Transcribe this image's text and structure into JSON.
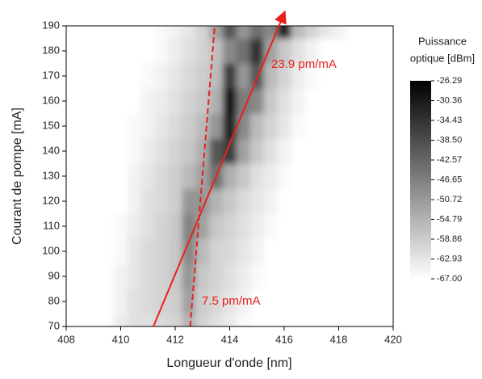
{
  "chart_data": {
    "type": "heatmap",
    "xlabel": "Longueur d'onde [nm]",
    "ylabel": "Courant de pompe [mA]",
    "xlim": [
      408,
      420
    ],
    "ylim": [
      70,
      190
    ],
    "xticks": [
      408,
      410,
      412,
      414,
      416,
      418,
      420
    ],
    "yticks": [
      70,
      80,
      90,
      100,
      110,
      120,
      130,
      140,
      150,
      160,
      170,
      180,
      190
    ],
    "x": [
      409.5,
      410,
      410.5,
      411,
      411.5,
      412,
      412.5,
      413,
      413.5,
      414,
      414.5,
      415,
      415.5,
      416,
      416.5,
      417,
      417.5,
      418,
      418.5
    ],
    "y": [
      70,
      80,
      90,
      100,
      110,
      120,
      130,
      140,
      150,
      160,
      170,
      180,
      190
    ],
    "z": [
      [
        -67,
        -64,
        -62,
        -62,
        -61,
        -60,
        -55,
        -60,
        -62,
        -64,
        -66,
        -67,
        -67,
        -67,
        -67,
        -67,
        -67,
        -67,
        -67
      ],
      [
        -67,
        -65,
        -62,
        -61,
        -60,
        -59,
        -52,
        -59,
        -61,
        -63,
        -65,
        -67,
        -67,
        -67,
        -67,
        -67,
        -67,
        -67,
        -67
      ],
      [
        -67,
        -65,
        -63,
        -61,
        -60,
        -58,
        -50,
        -58,
        -60,
        -62,
        -64,
        -66,
        -67,
        -67,
        -67,
        -67,
        -67,
        -67,
        -67
      ],
      [
        -67,
        -66,
        -63,
        -61,
        -60,
        -58,
        -48,
        -56,
        -60,
        -61,
        -63,
        -65,
        -67,
        -67,
        -67,
        -67,
        -67,
        -67,
        -67
      ],
      [
        -67,
        -66,
        -64,
        -62,
        -60,
        -58,
        -47,
        -52,
        -58,
        -60,
        -62,
        -64,
        -66,
        -67,
        -67,
        -67,
        -67,
        -67,
        -67
      ],
      [
        -67,
        -67,
        -65,
        -62,
        -61,
        -59,
        -50,
        -50,
        -55,
        -58,
        -61,
        -63,
        -65,
        -67,
        -67,
        -67,
        -67,
        -67,
        -67
      ],
      [
        -67,
        -67,
        -65,
        -63,
        -61,
        -59,
        -56,
        -52,
        -44,
        -54,
        -58,
        -62,
        -64,
        -66,
        -67,
        -67,
        -67,
        -67,
        -67
      ],
      [
        -67,
        -67,
        -66,
        -64,
        -62,
        -60,
        -58,
        -54,
        -40,
        -36,
        -52,
        -58,
        -62,
        -65,
        -67,
        -67,
        -67,
        -67,
        -67
      ],
      [
        -67,
        -67,
        -66,
        -65,
        -63,
        -61,
        -59,
        -56,
        -50,
        -32,
        -48,
        -56,
        -60,
        -63,
        -66,
        -67,
        -67,
        -67,
        -67
      ],
      [
        -67,
        -67,
        -67,
        -65,
        -64,
        -62,
        -60,
        -58,
        -54,
        -30,
        -46,
        -48,
        -58,
        -62,
        -65,
        -67,
        -67,
        -67,
        -67
      ],
      [
        -67,
        -67,
        -67,
        -66,
        -65,
        -63,
        -61,
        -59,
        -56,
        -36,
        -50,
        -40,
        -56,
        -60,
        -64,
        -66,
        -67,
        -67,
        -67
      ],
      [
        -67,
        -67,
        -67,
        -67,
        -66,
        -64,
        -62,
        -60,
        -57,
        -48,
        -44,
        -34,
        -52,
        -58,
        -62,
        -65,
        -67,
        -67,
        -67
      ],
      [
        -67,
        -67,
        -67,
        -67,
        -66,
        -65,
        -63,
        -60,
        -52,
        -40,
        -50,
        -44,
        -48,
        -32,
        -56,
        -60,
        -63,
        -65,
        -67
      ]
    ],
    "colorbar_title": [
      "Puissance",
      "optique [dBm]"
    ],
    "zlim": [
      -67,
      -26.29
    ],
    "zticks": [
      -26.29,
      -30.36,
      -34.43,
      {
        "value": -38.5,
        "label": "-38.50"
      },
      -42.57,
      -46.65,
      -50.72,
      -54.79,
      -58.86,
      -62.93,
      {
        "value": -67,
        "label": "-67.00"
      }
    ],
    "colormap": [
      "#ffffff",
      "#000000"
    ],
    "lines": [
      {
        "x": [
          411.2,
          416.0
        ],
        "y": [
          70,
          195
        ],
        "color": "#e8211c",
        "dashed": false,
        "arrow": true
      },
      {
        "x": [
          412.55,
          413.45
        ],
        "y": [
          70,
          190
        ],
        "color": "#e8211c",
        "dashed": true,
        "arrow": false
      }
    ],
    "annotations": [
      "23.9 pm/mA",
      "7.5 pm/mA"
    ]
  }
}
